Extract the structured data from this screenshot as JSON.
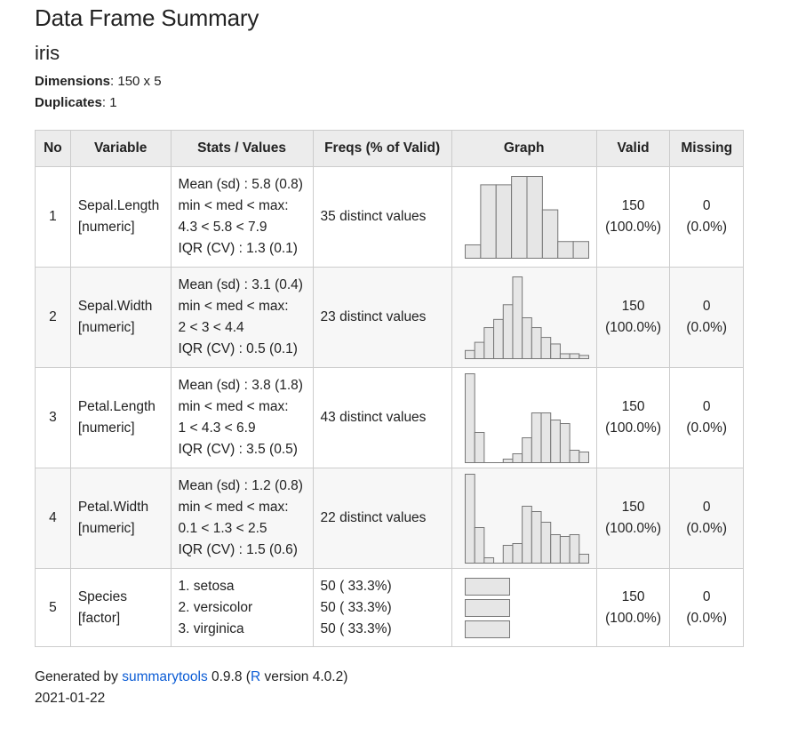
{
  "title": "Data Frame Summary",
  "dataset": "iris",
  "dimensions": {
    "label": "Dimensions",
    "value": ": 150 x 5"
  },
  "duplicates": {
    "label": "Duplicates",
    "value": ": 1"
  },
  "columns": [
    "No",
    "Variable",
    "Stats / Values",
    "Freqs (% of Valid)",
    "Graph",
    "Valid",
    "Missing"
  ],
  "rows": [
    {
      "no": "1",
      "var_name": "Sepal.Length",
      "var_type": "[numeric]",
      "stats": [
        "Mean (sd) : 5.8 (0.8)",
        "min < med < max:",
        "4.3 < 5.8 < 7.9",
        "IQR (CV) : 1.3 (0.1)"
      ],
      "freqs": [
        "35 distinct values"
      ],
      "valid": [
        "150",
        "(100.0%)"
      ],
      "missing": [
        "0",
        "(0.0%)"
      ]
    },
    {
      "no": "2",
      "var_name": "Sepal.Width",
      "var_type": "[numeric]",
      "stats": [
        "Mean (sd) : 3.1 (0.4)",
        "min < med < max:",
        "2 < 3 < 4.4",
        "IQR (CV) : 0.5 (0.1)"
      ],
      "freqs": [
        "23 distinct values"
      ],
      "valid": [
        "150",
        "(100.0%)"
      ],
      "missing": [
        "0",
        "(0.0%)"
      ]
    },
    {
      "no": "3",
      "var_name": "Petal.Length",
      "var_type": "[numeric]",
      "stats": [
        "Mean (sd) : 3.8 (1.8)",
        "min < med < max:",
        "1 < 4.3 < 6.9",
        "IQR (CV) : 3.5 (0.5)"
      ],
      "freqs": [
        "43 distinct values"
      ],
      "valid": [
        "150",
        "(100.0%)"
      ],
      "missing": [
        "0",
        "(0.0%)"
      ]
    },
    {
      "no": "4",
      "var_name": "Petal.Width",
      "var_type": "[numeric]",
      "stats": [
        "Mean (sd) : 1.2 (0.8)",
        "min < med < max:",
        "0.1 < 1.3 < 2.5",
        "IQR (CV) : 1.5 (0.6)"
      ],
      "freqs": [
        "22 distinct values"
      ],
      "valid": [
        "150",
        "(100.0%)"
      ],
      "missing": [
        "0",
        "(0.0%)"
      ]
    },
    {
      "no": "5",
      "var_name": "Species",
      "var_type": "[factor]",
      "stats": [
        "1. setosa",
        "2. versicolor",
        "3. virginica"
      ],
      "freqs": [
        "50 ( 33.3%)",
        "50 ( 33.3%)",
        "50 ( 33.3%)"
      ],
      "valid": [
        "150",
        "(100.0%)"
      ],
      "missing": [
        "0",
        "(0.0%)"
      ]
    }
  ],
  "chart_data": [
    {
      "type": "bar",
      "variable": "Sepal.Length",
      "values": [
        16,
        88,
        88,
        98,
        98,
        58,
        20,
        20
      ]
    },
    {
      "type": "bar",
      "variable": "Sepal.Width",
      "values": [
        10,
        20,
        38,
        48,
        66,
        100,
        50,
        38,
        26,
        18,
        6,
        6,
        4
      ]
    },
    {
      "type": "bar",
      "variable": "Petal.Length",
      "values": [
        100,
        34,
        0,
        0,
        4,
        10,
        28,
        56,
        56,
        48,
        44,
        14,
        12
      ]
    },
    {
      "type": "bar",
      "variable": "Petal.Width",
      "values": [
        100,
        40,
        6,
        0,
        20,
        22,
        64,
        58,
        46,
        32,
        30,
        32,
        10
      ]
    },
    {
      "type": "bar",
      "orientation": "horizontal",
      "variable": "Species",
      "categories": [
        "setosa",
        "versicolor",
        "virginica"
      ],
      "values": [
        50,
        50,
        50
      ]
    }
  ],
  "footer": {
    "prefix": "Generated by ",
    "link1": "summarytools",
    "mid": " 0.9.8 (",
    "link2": "R",
    "suffix": " version 4.0.2)",
    "date": "2021-01-22"
  },
  "colors": {
    "bar_fill": "#e6e6e6",
    "bar_stroke": "#777777",
    "link": "#0b5cd5",
    "header_bg": "#ececec",
    "border": "#cccccc"
  }
}
